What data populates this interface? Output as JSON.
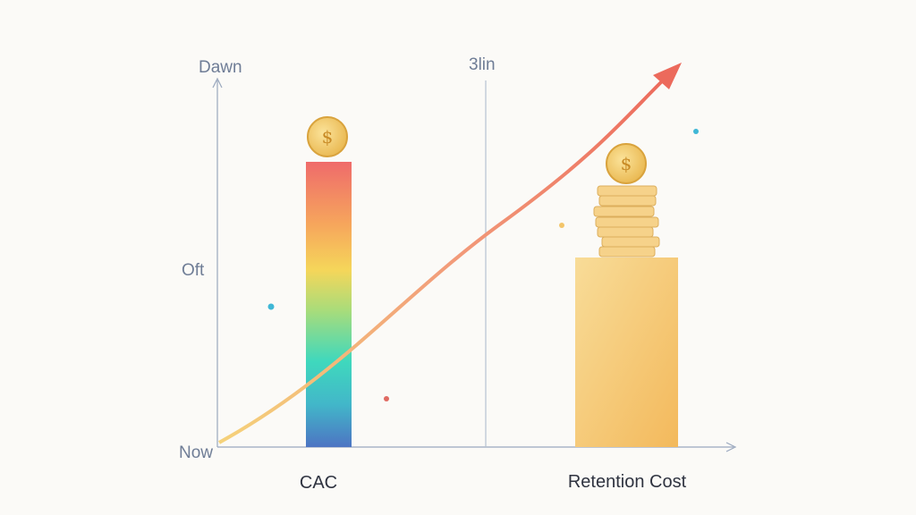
{
  "axis_labels": {
    "top": "Dawn",
    "middle": "Oft",
    "bottom": "Now"
  },
  "divider_label": "3lin",
  "bars": [
    {
      "label": "CAC"
    },
    {
      "label": "Retention Cost"
    }
  ]
}
